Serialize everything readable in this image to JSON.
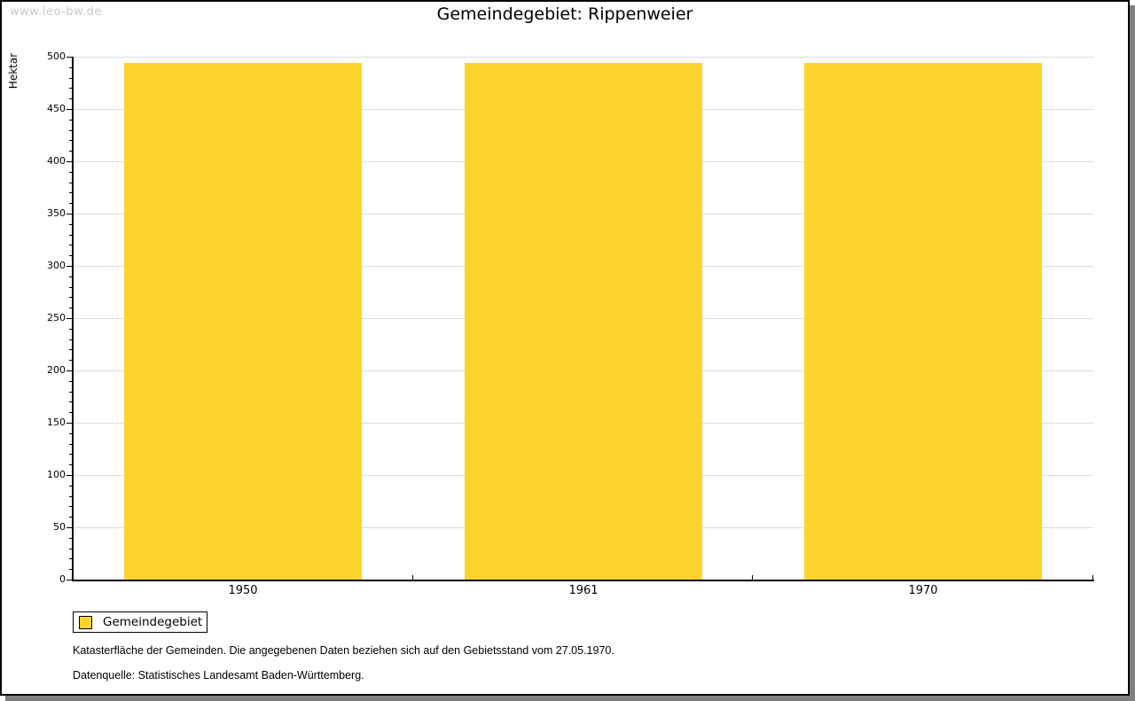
{
  "page": {
    "watermark": "www.leo-bw.de"
  },
  "chart": {
    "title": "Gemeindegebiet: Rippenweier",
    "y_axis_label": "Hektar",
    "legend": {
      "label": "Gemeindegebiet"
    },
    "footnote": "Katasterfläche der Gemeinden. Die angegebenen Daten beziehen sich auf den Gebietsstand vom 27.05.1970.",
    "source": "Datenquelle: Statistisches Landesamt Baden-Württemberg.",
    "colors": {
      "bar": "#FCD42D",
      "gridline": "#DCDCDC",
      "axis": "#000000",
      "watermark": "#C9C9C9",
      "shadow": "#7F7F7F"
    }
  },
  "chart_data": {
    "type": "bar",
    "categories": [
      "1950",
      "1961",
      "1970"
    ],
    "series": [
      {
        "name": "Gemeindegebiet",
        "values": [
          494,
          494,
          494
        ]
      }
    ],
    "title": "Gemeindegebiet: Rippenweier",
    "xlabel": "",
    "ylabel": "Hektar",
    "ylim": [
      0,
      500
    ],
    "y_major_step": 50,
    "y_minor_step": 10,
    "grid": true,
    "legend_position": "bottom-left",
    "bar_color": "#FCD42D"
  }
}
